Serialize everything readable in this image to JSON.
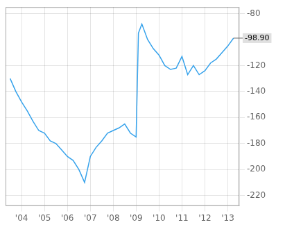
{
  "chart_data": {
    "type": "line",
    "x": [
      2003.5,
      2003.75,
      2004.0,
      2004.25,
      2004.5,
      2004.75,
      2005.0,
      2005.25,
      2005.5,
      2005.75,
      2006.0,
      2006.25,
      2006.5,
      2006.75,
      2007.0,
      2007.25,
      2007.5,
      2007.75,
      2008.0,
      2008.25,
      2008.5,
      2008.75,
      2009.0,
      2009.1,
      2009.25,
      2009.5,
      2009.75,
      2010.0,
      2010.25,
      2010.5,
      2010.75,
      2011.0,
      2011.25,
      2011.5,
      2011.75,
      2012.0,
      2012.25,
      2012.5,
      2012.75,
      2013.0,
      2013.25
    ],
    "values": [
      -130,
      -140,
      -148,
      -155,
      -163,
      -170,
      -172,
      -178,
      -180,
      -185,
      -190,
      -193,
      -200,
      -210,
      -190,
      -183,
      -178,
      -172,
      -170,
      -168,
      -165,
      -172,
      -175,
      -95,
      -88,
      -100,
      -107,
      -112,
      -120,
      -123,
      -122,
      -113,
      -127,
      -120,
      -127,
      -124,
      -118,
      -115,
      -110,
      -105,
      -98.9
    ],
    "xlim": [
      2003.3,
      2013.5
    ],
    "xticks": [
      {
        "value": 2004,
        "label": "'04"
      },
      {
        "value": 2005,
        "label": "'05"
      },
      {
        "value": 2006,
        "label": "'06"
      },
      {
        "value": 2007,
        "label": "'07"
      },
      {
        "value": 2008,
        "label": "'08"
      },
      {
        "value": 2009,
        "label": "'09"
      },
      {
        "value": 2010,
        "label": "'10"
      },
      {
        "value": 2011,
        "label": "'11"
      },
      {
        "value": 2012,
        "label": "'12"
      },
      {
        "value": 2013,
        "label": "'13"
      }
    ],
    "ylim": [
      -228,
      -75
    ],
    "yticks": [
      -220,
      -200,
      -180,
      -160,
      -140,
      -120,
      -80
    ],
    "grid": true,
    "annotations": [
      {
        "text": "-98.90",
        "x": 2013.25,
        "y": -98.9
      }
    ]
  }
}
